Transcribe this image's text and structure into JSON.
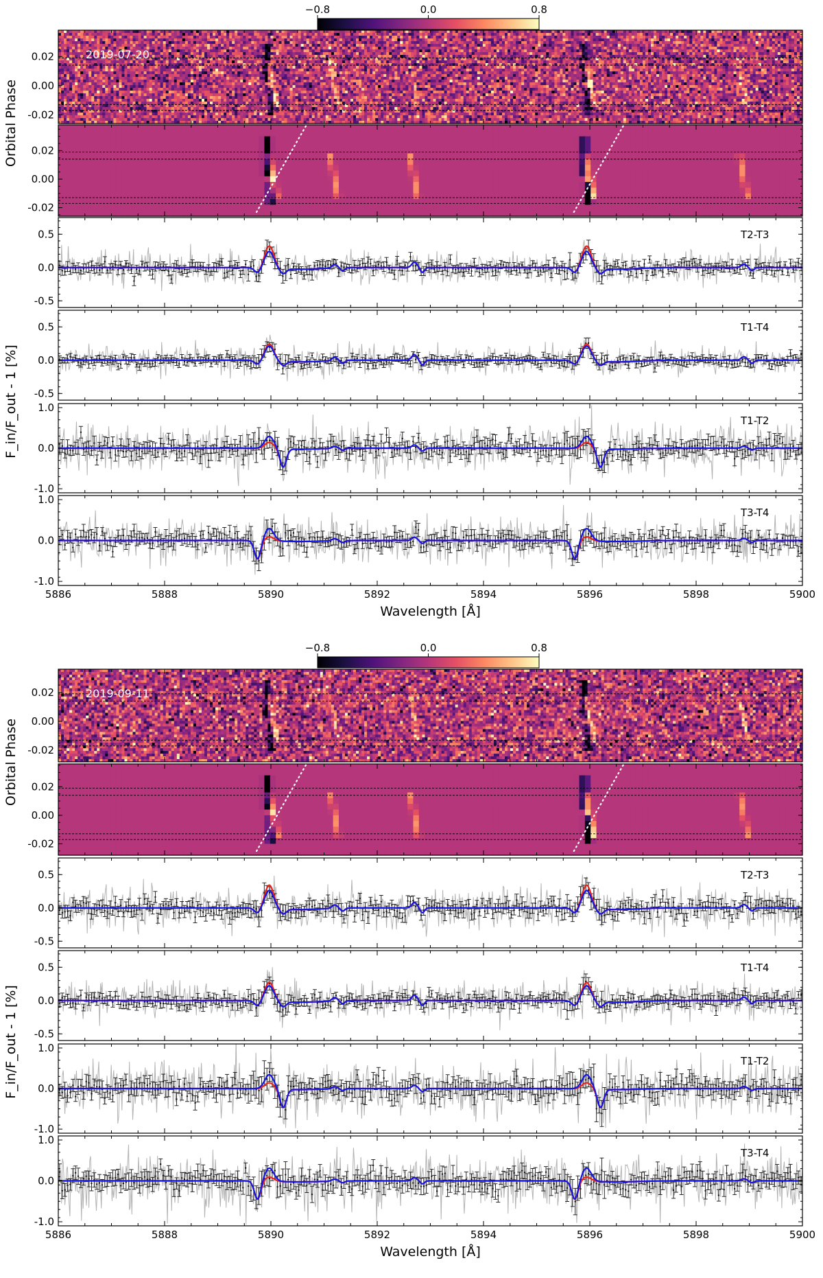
{
  "colorbar": {
    "ticks": [
      "−0.8",
      "0.0",
      "0.8"
    ],
    "colormap": "magma",
    "range": [
      -0.8,
      0.8
    ]
  },
  "chart_data": [
    {
      "type": "heatmap+line",
      "date": "2019-07-20",
      "ylabel_top": "Orbital Phase",
      "ylabel_bottom": "F_in/F_out - 1 [%]",
      "xlabel": "Wavelength [Å]",
      "xlim": [
        5886,
        5900
      ],
      "x_ticks": [
        "5886",
        "5888",
        "5890",
        "5892",
        "5894",
        "5896",
        "5898",
        "5900"
      ],
      "phase_ticks": [
        "0.02",
        "0.00",
        "-0.02"
      ],
      "phase_range": [
        -0.026,
        0.038
      ],
      "contact_phases": [
        0.019,
        0.014,
        -0.013,
        -0.017
      ],
      "lines_A": [
        5889.95,
        5895.92
      ],
      "weak_lines_A": [
        5891.2,
        5892.7,
        5898.9
      ],
      "panels": [
        {
          "label": "T2-T3",
          "ylim": [
            -0.6,
            0.75
          ],
          "y_ticks": [
            "0.5",
            "0.0",
            "-0.5"
          ],
          "y_tick_values": [
            0.5,
            0.0,
            -0.5
          ],
          "peak_red": 0.33,
          "peak_blue": 0.25,
          "dip": -0.15,
          "noise": 0.055
        },
        {
          "label": "T1-T4",
          "ylim": [
            -0.6,
            0.75
          ],
          "y_ticks": [
            "0.5",
            "0.0",
            "-0.5"
          ],
          "y_tick_values": [
            0.5,
            0.0,
            -0.5
          ],
          "peak_red": 0.25,
          "peak_blue": 0.22,
          "dip": -0.12,
          "noise": 0.045
        },
        {
          "label": "T1-T2",
          "ylim": [
            -1.1,
            1.1
          ],
          "y_ticks": [
            "1.0",
            "0.0",
            "-1.0"
          ],
          "y_tick_values": [
            1.0,
            0.0,
            -1.0
          ],
          "peak_red": 0.15,
          "peak_blue": 0.3,
          "dip": -0.45,
          "noise": 0.13
        },
        {
          "label": "T3-T4",
          "ylim": [
            -1.1,
            1.1
          ],
          "y_ticks": [
            "1.0",
            "0.0",
            "-1.0"
          ],
          "y_tick_values": [
            1.0,
            0.0,
            -1.0
          ],
          "peak_red": 0.1,
          "peak_blue": 0.3,
          "dip": -0.45,
          "noise": 0.12
        }
      ]
    },
    {
      "type": "heatmap+line",
      "date": "2019-09-11",
      "ylabel_top": "Orbital Phase",
      "ylabel_bottom": "F_in/F_out - 1 [%]",
      "xlabel": "Wavelength [Å]",
      "xlim": [
        5886,
        5900
      ],
      "x_ticks": [
        "5886",
        "5888",
        "5890",
        "5892",
        "5894",
        "5896",
        "5898",
        "5900"
      ],
      "phase_ticks": [
        "0.02",
        "0.00",
        "-0.02"
      ],
      "phase_range": [
        -0.028,
        0.036
      ],
      "contact_phases": [
        0.019,
        0.014,
        -0.013,
        -0.017
      ],
      "lines_A": [
        5889.95,
        5895.92
      ],
      "weak_lines_A": [
        5891.2,
        5892.7,
        5898.9
      ],
      "panels": [
        {
          "label": "T2-T3",
          "ylim": [
            -0.6,
            0.75
          ],
          "y_ticks": [
            "0.5",
            "0.0",
            "-0.5"
          ],
          "y_tick_values": [
            0.5,
            0.0,
            -0.5
          ],
          "peak_red": 0.35,
          "peak_blue": 0.27,
          "dip": -0.15,
          "noise": 0.07
        },
        {
          "label": "T1-T4",
          "ylim": [
            -0.6,
            0.75
          ],
          "y_ticks": [
            "0.5",
            "0.0",
            "-0.5"
          ],
          "y_tick_values": [
            0.5,
            0.0,
            -0.5
          ],
          "peak_red": 0.28,
          "peak_blue": 0.23,
          "dip": -0.15,
          "noise": 0.06
        },
        {
          "label": "T1-T2",
          "ylim": [
            -1.1,
            1.1
          ],
          "y_ticks": [
            "1.0",
            "0.0",
            "-1.0"
          ],
          "y_tick_values": [
            1.0,
            0.0,
            -1.0
          ],
          "peak_red": 0.15,
          "peak_blue": 0.35,
          "dip": -0.45,
          "noise": 0.15
        },
        {
          "label": "T3-T4",
          "ylim": [
            -1.1,
            1.1
          ],
          "y_ticks": [
            "1.0",
            "0.0",
            "-1.0"
          ],
          "y_tick_values": [
            1.0,
            0.0,
            -1.0
          ],
          "peak_red": 0.1,
          "peak_blue": 0.32,
          "dip": -0.45,
          "noise": 0.15
        }
      ]
    }
  ],
  "colors": {
    "model_red": "#e8231c",
    "model_blue": "#1414e6",
    "data_gray": "#b3b3b3",
    "binned_black": "#111111"
  }
}
